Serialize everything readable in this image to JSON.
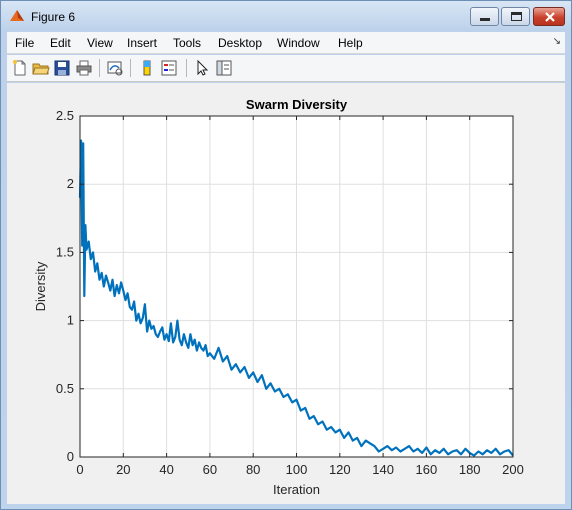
{
  "window": {
    "title": "Figure 6"
  },
  "menu": {
    "items": [
      {
        "label": "File"
      },
      {
        "label": "Edit"
      },
      {
        "label": "View"
      },
      {
        "label": "Insert"
      },
      {
        "label": "Tools"
      },
      {
        "label": "Desktop"
      },
      {
        "label": "Window"
      },
      {
        "label": "Help"
      }
    ],
    "overflow_arrow": "↘"
  },
  "toolbar": {
    "icons": [
      "new-figure-icon",
      "open-file-icon",
      "save-icon",
      "print-icon",
      "link-plot-icon",
      "colorbar-icon",
      "legend-icon",
      "pointer-icon",
      "property-editor-icon"
    ]
  },
  "chart_data": {
    "type": "line",
    "title": "Swarm Diversity",
    "xlabel": "Iteration",
    "ylabel": "Diversity",
    "xlim": [
      0,
      200
    ],
    "ylim": [
      0,
      2.5
    ],
    "xticks": [
      "0",
      "20",
      "40",
      "60",
      "80",
      "100",
      "120",
      "140",
      "160",
      "180",
      "200"
    ],
    "yticks": [
      "0",
      "0.5",
      "1",
      "1.5",
      "2",
      "2.5"
    ],
    "grid": true,
    "line_color": "#0072bd",
    "series": [
      {
        "x": [
          0,
          0.5,
          1,
          1.5,
          2,
          2.5,
          3,
          4,
          5,
          6,
          7,
          8,
          9,
          10,
          11,
          12,
          13,
          14,
          15,
          16,
          17,
          18,
          19,
          20,
          21,
          22,
          23,
          24,
          25,
          26,
          27,
          28,
          29,
          30,
          31,
          32,
          33,
          34,
          35,
          36,
          37,
          38,
          39,
          40,
          41,
          42,
          43,
          44,
          45,
          46,
          47,
          48,
          49,
          50,
          51,
          52,
          53,
          54,
          55,
          56,
          57,
          58,
          59,
          60,
          62,
          64,
          66,
          68,
          70,
          72,
          74,
          76,
          78,
          80,
          82,
          84,
          86,
          88,
          90,
          92,
          94,
          96,
          98,
          100,
          102,
          104,
          106,
          108,
          110,
          112,
          114,
          116,
          118,
          120,
          122,
          124,
          126,
          128,
          130,
          132,
          134,
          136,
          138,
          140,
          142,
          144,
          146,
          148,
          150,
          152,
          154,
          156,
          158,
          160,
          162,
          164,
          166,
          168,
          170,
          172,
          174,
          176,
          178,
          180,
          182,
          184,
          186,
          188,
          190,
          192,
          194,
          196,
          198,
          200
        ],
        "y": [
          1.9,
          2.32,
          1.55,
          2.3,
          1.18,
          1.7,
          1.52,
          1.58,
          1.45,
          1.5,
          1.36,
          1.42,
          1.3,
          1.35,
          1.25,
          1.33,
          1.28,
          1.22,
          1.3,
          1.18,
          1.26,
          1.2,
          1.28,
          1.22,
          1.15,
          1.2,
          1.1,
          1.08,
          1.14,
          1.0,
          1.05,
          0.98,
          1.02,
          1.12,
          0.92,
          1.0,
          0.94,
          0.96,
          0.9,
          0.88,
          0.92,
          0.95,
          0.86,
          0.9,
          0.85,
          0.98,
          0.84,
          0.88,
          1.0,
          0.86,
          0.82,
          0.9,
          0.84,
          0.8,
          0.9,
          0.82,
          0.86,
          0.78,
          0.84,
          0.8,
          0.78,
          0.82,
          0.74,
          0.76,
          0.72,
          0.8,
          0.7,
          0.74,
          0.64,
          0.68,
          0.62,
          0.66,
          0.58,
          0.62,
          0.55,
          0.6,
          0.5,
          0.54,
          0.48,
          0.5,
          0.44,
          0.46,
          0.4,
          0.42,
          0.34,
          0.36,
          0.28,
          0.3,
          0.24,
          0.26,
          0.2,
          0.22,
          0.18,
          0.2,
          0.14,
          0.18,
          0.12,
          0.14,
          0.08,
          0.12,
          0.1,
          0.08,
          0.04,
          0.06,
          0.08,
          0.05,
          0.07,
          0.04,
          0.06,
          0.08,
          0.04,
          0.06,
          0.03,
          0.07,
          0.02,
          0.05,
          0.03,
          0.06,
          0.02,
          0.04,
          0.05,
          0.02,
          0.06,
          0.03,
          0.01,
          0.04,
          0.02,
          0.05,
          0.03,
          0.06,
          0.02,
          0.04,
          0.05,
          0.01
        ]
      }
    ]
  }
}
